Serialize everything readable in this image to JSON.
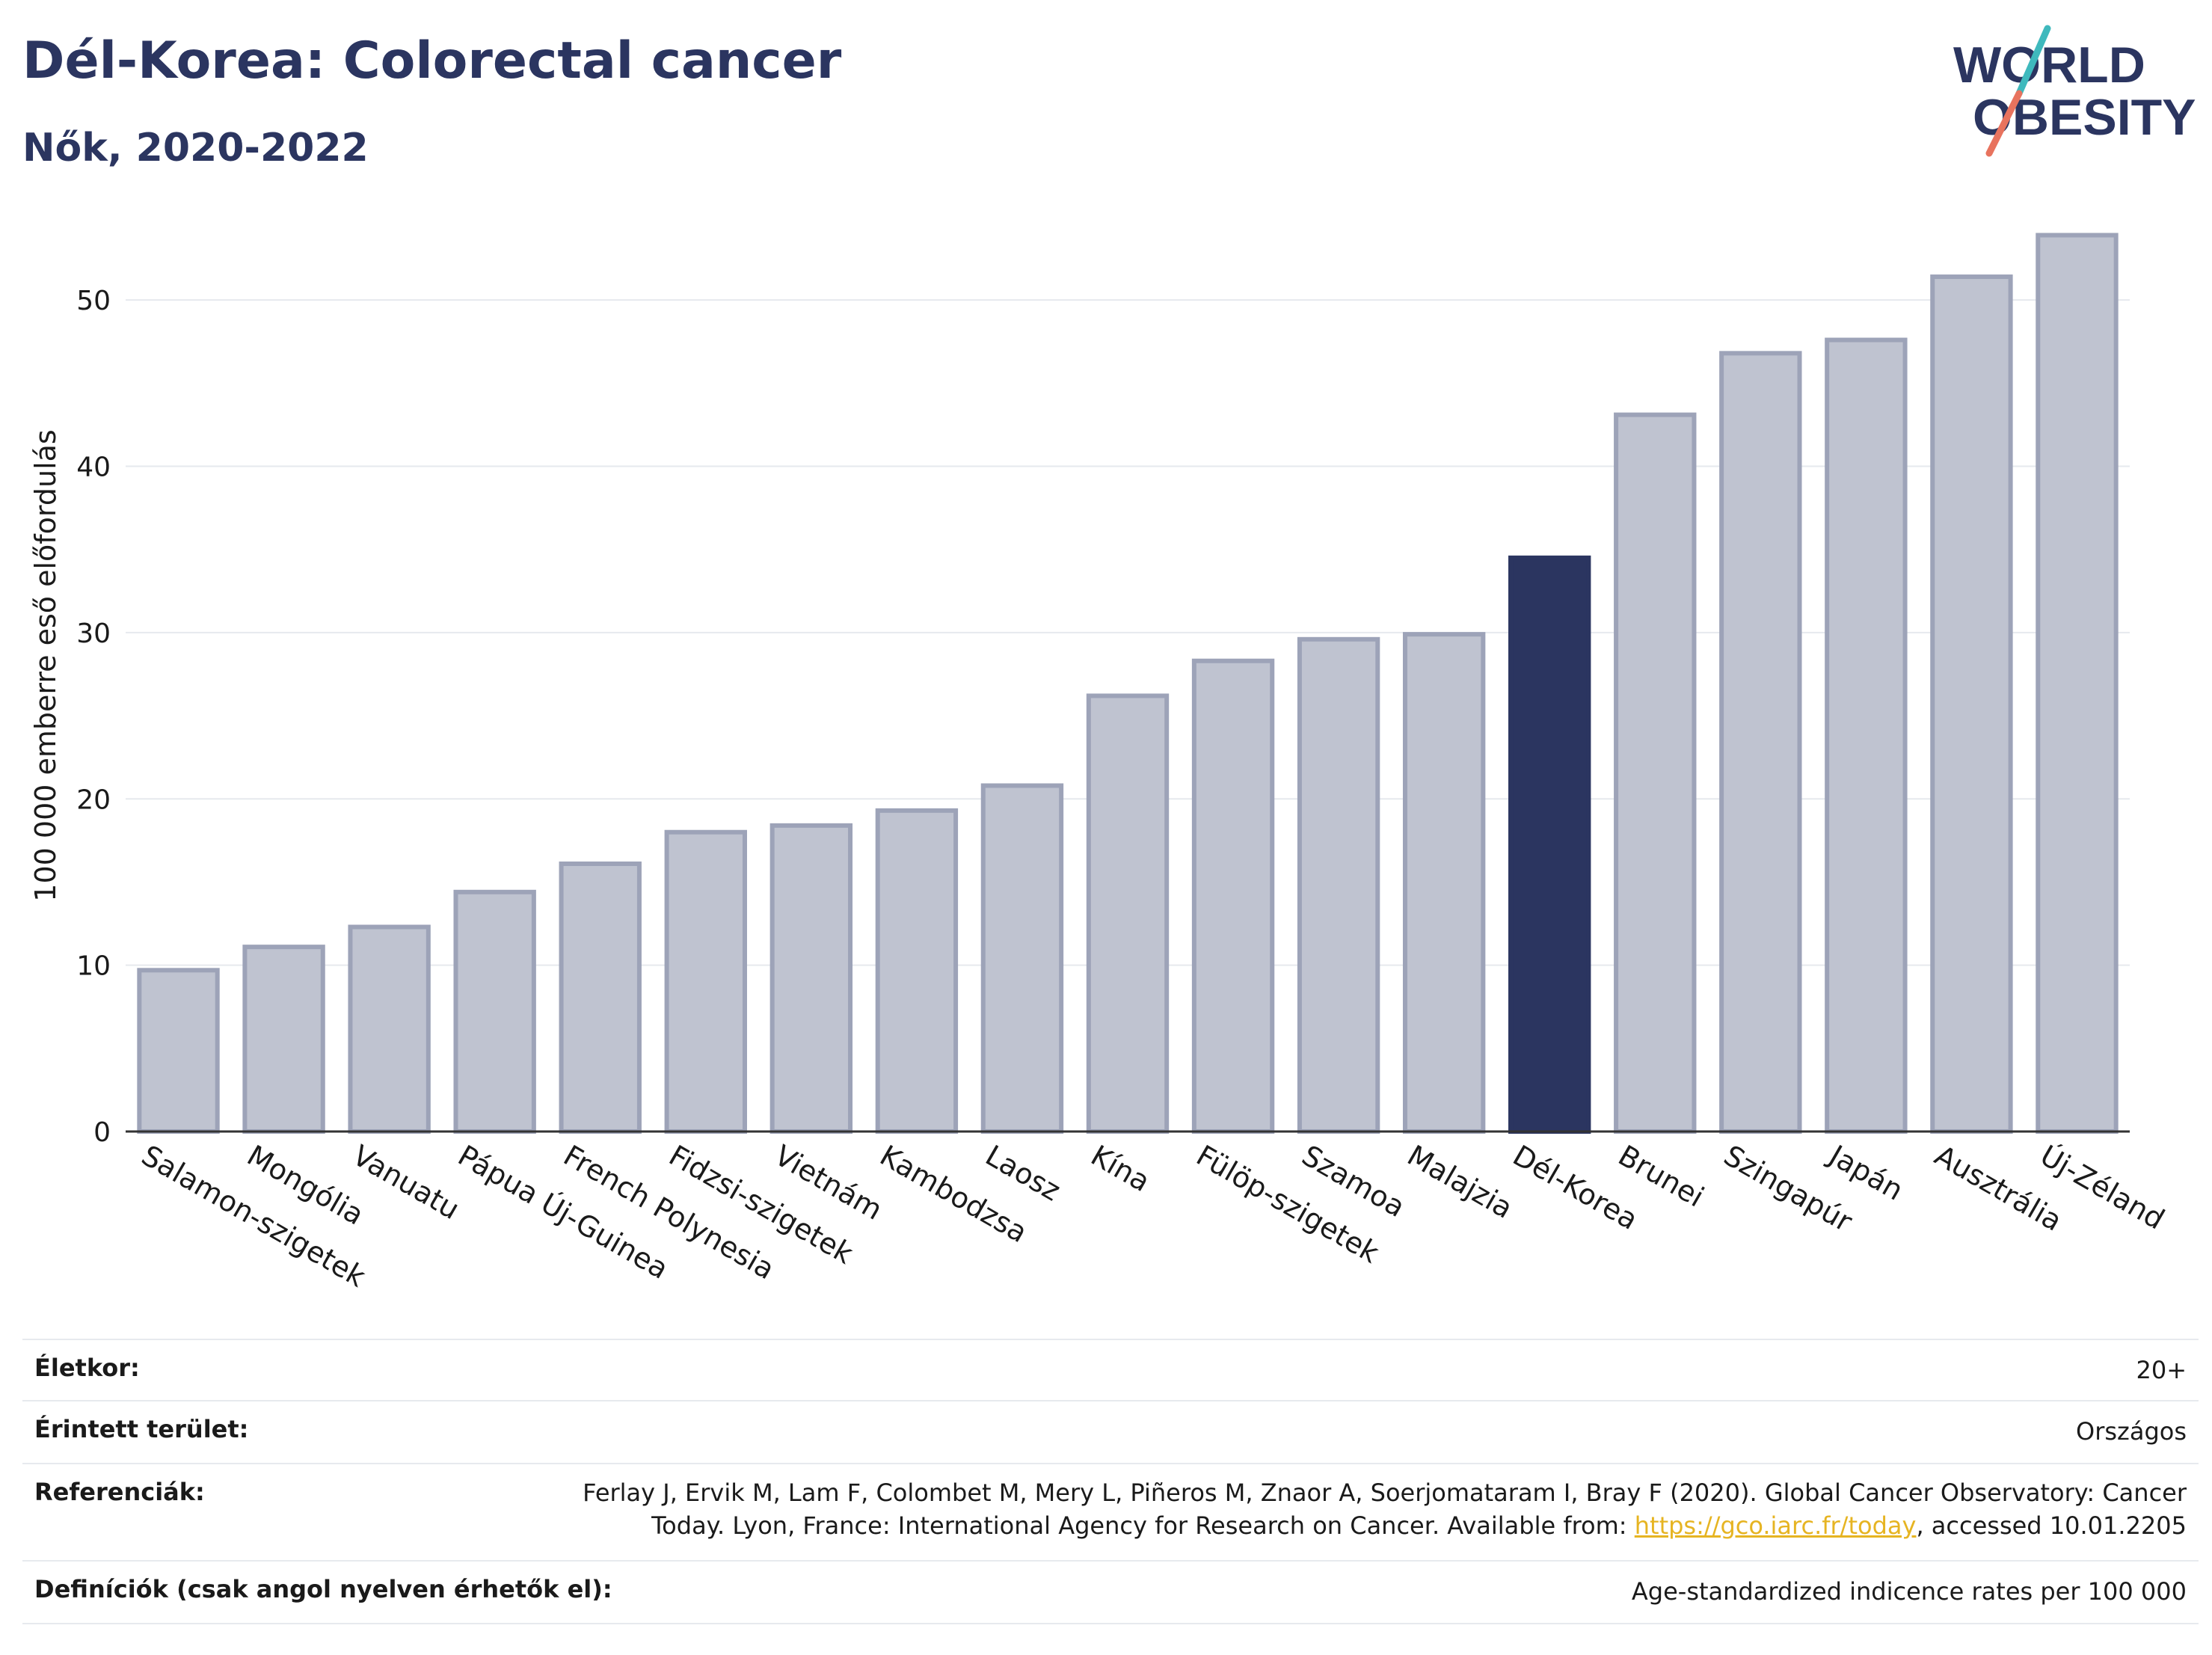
{
  "header": {
    "title": "Dél-Korea: Colorectal cancer",
    "subtitle": "Nők, 2020-2022"
  },
  "logo": {
    "line1": "WORLD",
    "line2": "OBESITY",
    "colors": {
      "text": "#2b3560",
      "slash_teal": "#3fb9bd",
      "slash_coral": "#e8735e"
    }
  },
  "chart_data": {
    "type": "bar",
    "ylabel": "100 000 emberre eső előfordulás",
    "ylim": [
      0,
      55
    ],
    "yticks": [
      0,
      10,
      20,
      30,
      40,
      50
    ],
    "grid": true,
    "categories": [
      "Salamon-szigetek",
      "Mongólia",
      "Vanuatu",
      "Pápua Új-Guinea",
      "French Polynesia",
      "Fidzsi-szigetek",
      "Vietnám",
      "Kambodzsa",
      "Laosz",
      "Kína",
      "Fülöp-szigetek",
      "Szamoa",
      "Malajzia",
      "Dél-Korea",
      "Brunei",
      "Szingapúr",
      "Japán",
      "Ausztrália",
      "Új-Zéland"
    ],
    "values": [
      9.7,
      11.1,
      12.3,
      14.4,
      16.1,
      18.0,
      18.4,
      19.3,
      20.8,
      26.2,
      28.3,
      29.6,
      29.9,
      34.5,
      43.1,
      46.8,
      47.6,
      51.4,
      53.9
    ],
    "highlight": "Dél-Korea",
    "colors": {
      "bar": "#bfc3d0",
      "bar_edge": "#9da3b8",
      "highlight": "#2b3560",
      "axis": "#333333",
      "grid": "#e6e9ee"
    }
  },
  "footer": {
    "age_label": "Életkor:",
    "age_value": "20+",
    "area_label": "Érintett terület:",
    "area_value": "Országos",
    "ref_label": "Referenciák:",
    "ref_line1": "Ferlay J, Ervik M, Lam F, Colombet M, Mery L, Piñeros M, Znaor A, Soerjomataram I, Bray F (2020). Global Cancer Observatory: Cancer",
    "ref_line2_pre": "Today. Lyon, France: International Agency for Research on Cancer. Available from: ",
    "ref_link": "https://gco.iarc.fr/today",
    "ref_line2_post": ", accessed 10.01.2205",
    "def_label": "Definíciók (csak angol nyelven érhetők el):",
    "def_value": "Age-standardized indicence rates per 100 000"
  }
}
